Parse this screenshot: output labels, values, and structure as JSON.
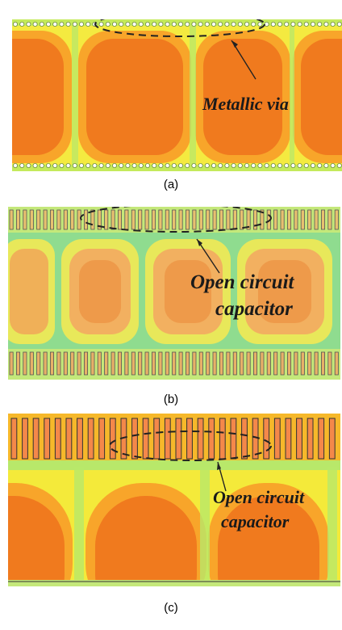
{
  "panels": [
    {
      "caption": "(a)",
      "annotation": [
        "Metallic via"
      ]
    },
    {
      "caption": "(b)",
      "annotation": [
        "Open circuit",
        "capacitor"
      ]
    },
    {
      "caption": "(c)",
      "annotation": [
        "Open circuit",
        "capacitor"
      ]
    }
  ],
  "colors": {
    "deep_orange": "#f07a1e",
    "orange": "#f8a52a",
    "yellow": "#f6ee3a",
    "light_green": "#b8e86a",
    "green": "#7fdc8a",
    "teal": "#9be0c8"
  }
}
